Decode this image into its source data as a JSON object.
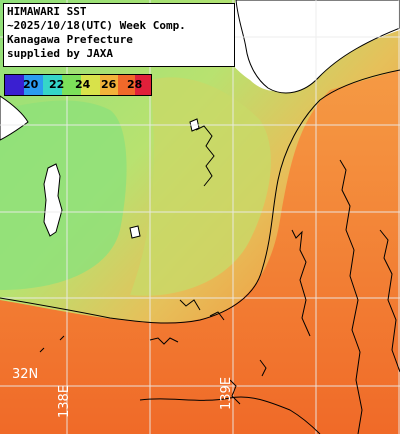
{
  "title": {
    "lines": [
      "HIMAWARI SST",
      "~2025/10/18(UTC) Week Comp.",
      "Kanagawa Prefecture",
      "supplied by JAXA"
    ]
  },
  "colorbar": {
    "ticks": [
      "20",
      "22",
      "24",
      "26",
      "28"
    ],
    "colors": [
      "#3a1fd1",
      "#2b9bf0",
      "#35d6c8",
      "#7ce05a",
      "#d8e24a",
      "#f2b23a",
      "#f0692a",
      "#e0203a"
    ]
  },
  "labels": {
    "lat": "32N",
    "lon1": "138E",
    "lon2": "139E"
  },
  "colors": {
    "land": "#ffffff",
    "cool_water": "#8fe07a",
    "mid_water": "#c6e47a",
    "warm_water": "#f2a23c",
    "hot_water": "#f0702a",
    "grid": "#e8e8e8",
    "contour": "#000000"
  }
}
